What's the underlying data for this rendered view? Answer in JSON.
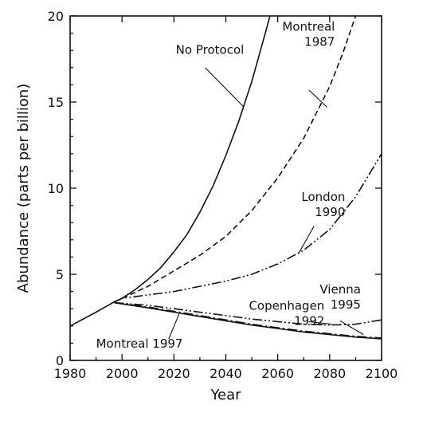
{
  "chart_data": {
    "type": "line",
    "xlabel": "Year",
    "ylabel": "Abundance (parts per billion)",
    "xlim": [
      1980,
      2100
    ],
    "ylim": [
      0,
      20
    ],
    "xticks": [
      1980,
      2000,
      2020,
      2040,
      2060,
      2080,
      2100
    ],
    "yticks": [
      0,
      5,
      10,
      15,
      20
    ],
    "grid": false,
    "legend": "none",
    "series": [
      {
        "name": "No Protocol",
        "style": "solid",
        "x": [
          1980,
          1985,
          1990,
          1997,
          2000,
          2005,
          2010,
          2015,
          2020,
          2025,
          2030,
          2035,
          2040,
          2045,
          2050,
          2055,
          2057
        ],
        "y": [
          2.0,
          2.4,
          2.8,
          3.4,
          3.6,
          4.1,
          4.7,
          5.4,
          6.3,
          7.3,
          8.6,
          10.1,
          11.9,
          13.9,
          16.2,
          18.9,
          20.0
        ]
      },
      {
        "name": "Montreal 1987",
        "style": "dashed",
        "x": [
          1997,
          2000,
          2010,
          2020,
          2030,
          2040,
          2050,
          2060,
          2070,
          2080,
          2085,
          2090
        ],
        "y": [
          3.4,
          3.6,
          4.3,
          5.2,
          6.1,
          7.2,
          8.7,
          10.6,
          12.9,
          15.9,
          17.8,
          20.0
        ]
      },
      {
        "name": "London 1990",
        "style": "dash-dot-dot",
        "x": [
          1997,
          2000,
          2010,
          2020,
          2030,
          2040,
          2050,
          2060,
          2070,
          2080,
          2090,
          2100
        ],
        "y": [
          3.4,
          3.6,
          3.8,
          4.0,
          4.3,
          4.6,
          5.0,
          5.6,
          6.4,
          7.6,
          9.5,
          12.0
        ]
      },
      {
        "name": "Copenhagen 1992",
        "style": "dash-dot-dot",
        "x": [
          1997,
          2010,
          2020,
          2030,
          2040,
          2050,
          2060,
          2070,
          2080,
          2090,
          2100
        ],
        "y": [
          3.35,
          3.2,
          3.0,
          2.8,
          2.6,
          2.4,
          2.25,
          2.1,
          2.05,
          2.1,
          2.35
        ]
      },
      {
        "name": "Vienna 1995",
        "style": "dash-dot",
        "x": [
          1997,
          2010,
          2020,
          2030,
          2040,
          2050,
          2060,
          2070,
          2080,
          2090,
          2100
        ],
        "y": [
          3.35,
          3.1,
          2.85,
          2.6,
          2.35,
          2.1,
          1.9,
          1.7,
          1.55,
          1.4,
          1.3
        ]
      },
      {
        "name": "Montreal 1997",
        "style": "solid",
        "x": [
          1997,
          2010,
          2020,
          2030,
          2040,
          2050,
          2060,
          2070,
          2080,
          2090,
          2100
        ],
        "y": [
          3.35,
          3.05,
          2.8,
          2.55,
          2.3,
          2.05,
          1.85,
          1.65,
          1.5,
          1.35,
          1.25
        ]
      }
    ],
    "annotations": [
      {
        "lines": [
          "No Protocol"
        ],
        "anchor": "end",
        "tx": 2047,
        "ty": 17.8,
        "from": [
          2032,
          17.0
        ],
        "to": [
          2047,
          14.7
        ]
      },
      {
        "lines": [
          "Montreal",
          "1987"
        ],
        "anchor": "end",
        "tx": 2082,
        "ty": 19.15,
        "from": [
          2072,
          15.7
        ],
        "to": [
          2079,
          14.7
        ]
      },
      {
        "lines": [
          "London",
          "1990"
        ],
        "anchor": "end",
        "tx": 2086,
        "ty": 9.25,
        "from": [
          2074,
          7.8
        ],
        "to": [
          2068,
          6.2
        ]
      },
      {
        "lines": [
          "Vienna",
          "1995"
        ],
        "anchor": "end",
        "tx": 2092,
        "ty": 3.9,
        "from": [
          2084,
          2.3
        ],
        "to": [
          2093,
          1.5
        ]
      },
      {
        "lines": [
          "Copenhagen",
          "1992"
        ],
        "anchor": "end",
        "tx": 2078,
        "ty": 2.95,
        "from": [
          2072,
          2.25
        ],
        "to": [
          2081,
          2.1
        ]
      },
      {
        "lines": [
          "Montreal 1997"
        ],
        "anchor": "start",
        "tx": 1990,
        "ty": 0.75,
        "from": [
          2018,
          1.25
        ],
        "to": [
          2022,
          2.7
        ]
      }
    ]
  }
}
